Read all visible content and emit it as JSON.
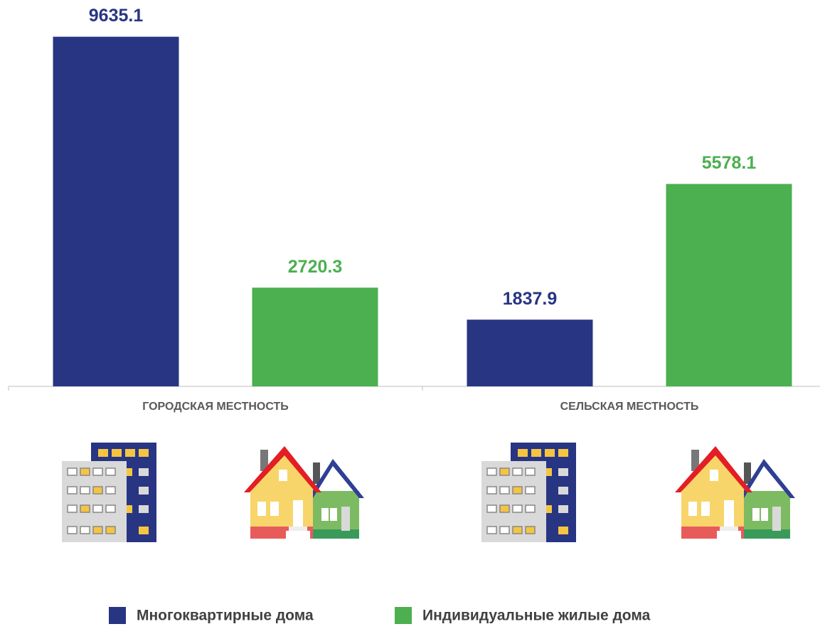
{
  "chart_data": {
    "type": "bar",
    "categories": [
      "ГОРОДСКАЯ МЕСТНОСТЬ",
      "СЕЛЬСКАЯ МЕСТНОСТЬ"
    ],
    "series": [
      {
        "name": "Многоквартирные дома",
        "color": "#283583",
        "values": [
          9635.1,
          1837.9
        ]
      },
      {
        "name": "Индивидуальные жилые дома",
        "color": "#4caf50",
        "values": [
          2720.3,
          5578.1
        ]
      }
    ],
    "ylim": [
      0,
      10000
    ]
  }
}
